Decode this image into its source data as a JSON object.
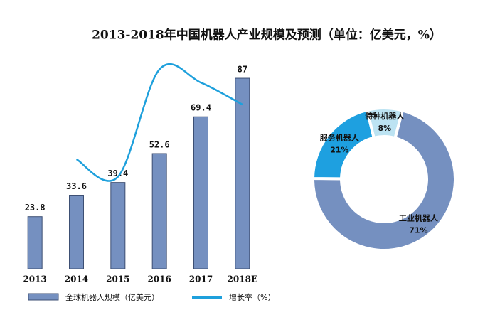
{
  "title": "2013-2018年中国机器人产业规模及预测（单位：亿美元，%）",
  "chart_data": [
    {
      "type": "bar",
      "categories": [
        "2013",
        "2014",
        "2015",
        "2016",
        "2017",
        "2018E"
      ],
      "ylim": [
        0,
        100
      ],
      "y2lim": [
        0,
        100
      ],
      "series": [
        {
          "name": "全球机器人规模（亿美元）",
          "color": "#7590c0",
          "values": [
            23.8,
            33.6,
            39.4,
            52.6,
            69.4,
            87
          ]
        },
        {
          "name": "增长率（%）",
          "color": "#1ea0dc",
          "axis": "y2",
          "type": "line",
          "values": [
            null,
            50,
            42,
            91,
            85,
            75
          ]
        }
      ]
    },
    {
      "type": "pie",
      "categories": [
        "工业机器人",
        "服务机器人",
        "特种机器人"
      ],
      "values": [
        71,
        21,
        8
      ],
      "value_labels": [
        "71%",
        "21%",
        "8%"
      ],
      "colors": [
        "#7590c0",
        "#1ea0e0",
        "#bce3f2"
      ]
    }
  ]
}
